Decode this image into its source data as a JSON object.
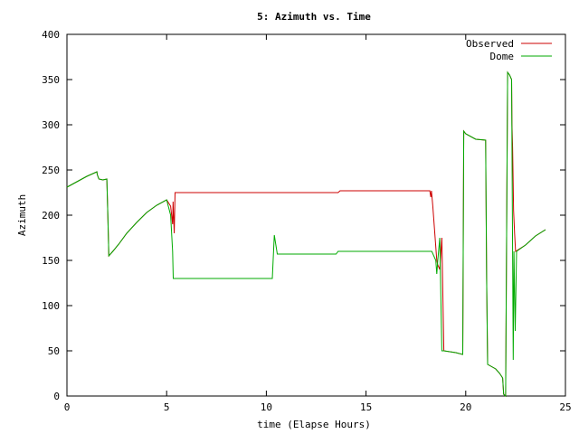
{
  "chart_data": {
    "type": "line",
    "title": "5: Azimuth vs. Time",
    "xlabel": "time (Elapse Hours)",
    "ylabel": "Azimuth",
    "xlim": [
      0,
      25
    ],
    "ylim": [
      0,
      400
    ],
    "xticks": [
      "0",
      "5",
      "10",
      "15",
      "20",
      "25"
    ],
    "yticks": [
      "0",
      "50",
      "100",
      "150",
      "200",
      "250",
      "300",
      "350",
      "400"
    ],
    "grid": false,
    "legend_position": "top-right",
    "series": [
      {
        "name": "Observed",
        "color": "#cc0000",
        "x": [
          0,
          0.5,
          1.0,
          1.5,
          1.52,
          1.6,
          1.8,
          2.0,
          2.05,
          2.1,
          2.3,
          2.6,
          3.0,
          3.5,
          4.0,
          4.5,
          5.0,
          5.2,
          5.3,
          5.32,
          5.38,
          5.42,
          5.48,
          6.0,
          8.0,
          10.0,
          12.0,
          13.6,
          13.7,
          15.0,
          17.0,
          18.2,
          18.25,
          18.28,
          18.35,
          18.45,
          18.55,
          18.6,
          18.7,
          18.8,
          18.9,
          19.5,
          19.85,
          19.9,
          20.0,
          20.5,
          21.0,
          21.05,
          21.1,
          21.5,
          21.7,
          21.85,
          21.9,
          22.0,
          22.1,
          22.2,
          22.3,
          22.32,
          22.35,
          22.4,
          22.45,
          22.5,
          23.0,
          23.5,
          24.0
        ],
        "y": [
          231,
          237,
          243,
          248,
          245,
          240,
          239,
          240,
          200,
          155,
          160,
          168,
          180,
          192,
          203,
          211,
          217,
          210,
          190,
          215,
          180,
          225,
          225,
          225,
          225,
          225,
          225,
          225,
          227,
          227,
          227,
          227,
          220,
          227,
          210,
          180,
          150,
          145,
          140,
          175,
          50,
          48,
          46,
          293,
          290,
          284,
          283,
          130,
          35,
          30,
          25,
          20,
          2,
          0,
          358,
          355,
          350,
          300,
          275,
          205,
          180,
          160,
          167,
          177,
          184
        ]
      },
      {
        "name": "Dome",
        "color": "#00aa00",
        "x": [
          0,
          0.5,
          1.0,
          1.5,
          1.52,
          1.6,
          1.8,
          2.0,
          2.05,
          2.1,
          2.3,
          2.6,
          3.0,
          3.5,
          4.0,
          4.5,
          5.0,
          5.2,
          5.3,
          5.33,
          5.4,
          6.0,
          8.0,
          10.0,
          10.3,
          10.4,
          10.55,
          11.0,
          13.0,
          13.5,
          13.6,
          15.0,
          17.0,
          18.3,
          18.5,
          18.55,
          18.6,
          18.7,
          18.8,
          18.9,
          19.5,
          19.85,
          19.9,
          20.0,
          20.5,
          21.0,
          21.05,
          21.1,
          21.5,
          21.7,
          21.85,
          21.9,
          22.0,
          22.1,
          22.2,
          22.3,
          22.38,
          22.42,
          22.48,
          22.55,
          23.0,
          23.5,
          24.0
        ],
        "y": [
          231,
          237,
          243,
          248,
          245,
          240,
          239,
          240,
          200,
          155,
          160,
          168,
          180,
          192,
          203,
          211,
          217,
          200,
          160,
          130,
          130,
          130,
          130,
          130,
          130,
          178,
          157,
          157,
          157,
          157,
          160,
          160,
          160,
          160,
          150,
          135,
          150,
          175,
          50,
          50,
          48,
          46,
          293,
          290,
          284,
          283,
          130,
          35,
          30,
          25,
          20,
          2,
          0,
          358,
          355,
          350,
          40,
          160,
          72,
          160,
          167,
          177,
          184
        ]
      }
    ]
  }
}
